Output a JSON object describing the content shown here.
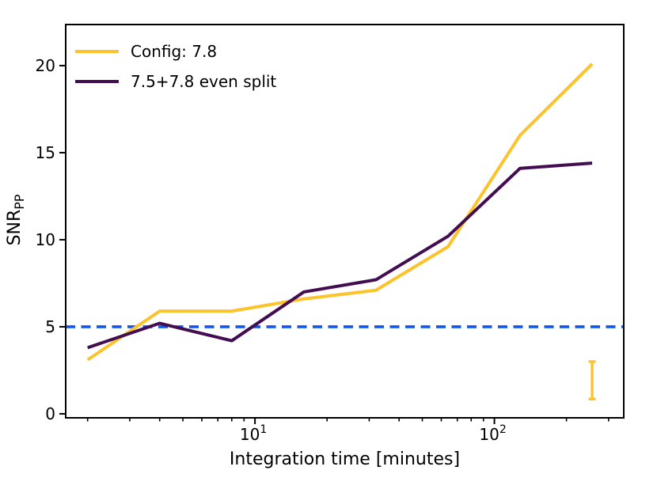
{
  "chart_data": {
    "type": "line",
    "title": "",
    "xlabel": "Integration time [minutes]",
    "ylabel": {
      "text": "SNR",
      "subscript": "PP"
    },
    "x_scale": "log",
    "xlim": [
      1.62,
      347
    ],
    "ylim": [
      -0.23,
      22.36
    ],
    "x_minutes": [
      2,
      4,
      8,
      16,
      32,
      64,
      128,
      256
    ],
    "series": [
      {
        "name": "Config: 7.8",
        "color": "#FDC32C",
        "values": [
          3.1,
          5.9,
          5.9,
          6.6,
          7.1,
          9.6,
          16.0,
          20.1
        ]
      },
      {
        "name": "7.5+7.8 even split",
        "color": "#430D51",
        "values": [
          3.8,
          5.2,
          4.2,
          7.0,
          7.7,
          10.2,
          14.1,
          14.4
        ]
      }
    ],
    "threshold": {
      "y": 5,
      "color": "#0F55EE",
      "dash": [
        12,
        7.5
      ]
    },
    "error_bar": {
      "x": 256,
      "y_low": 0.85,
      "y_high": 3.0,
      "color": "#FDC32C"
    },
    "axes": {
      "x_major_ticks": [
        10,
        100
      ],
      "x_major_labels": [
        {
          "base": "10",
          "exp": "1"
        },
        {
          "base": "10",
          "exp": "2"
        }
      ],
      "y_ticks": [
        0,
        5,
        10,
        15,
        20
      ],
      "grid": false,
      "legend_position": "upper-left",
      "legend_frame": false
    },
    "colors": {
      "axis": "#000000",
      "background": "#ffffff"
    }
  }
}
